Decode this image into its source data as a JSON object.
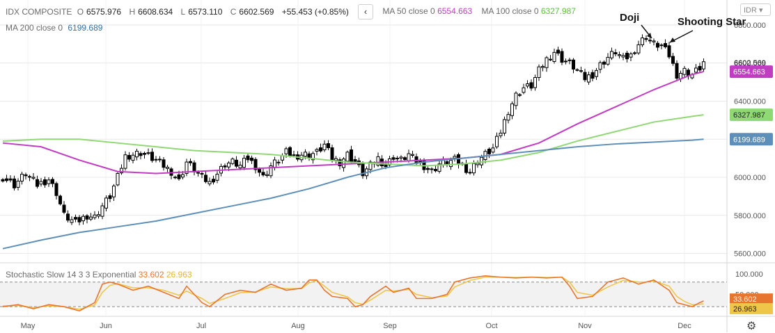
{
  "legend": {
    "symbol": "IDX COMPOSITE",
    "open_label": "O",
    "open": "6575.976",
    "high_label": "H",
    "high": "6608.634",
    "low_label": "L",
    "low": "6573.110",
    "close_label": "C",
    "close": "6602.569",
    "change": "+55.453 (+0.85%)",
    "ma50_label": "MA 50 close 0",
    "ma50": "6554.663",
    "ma100_label": "MA 100 close 0",
    "ma100": "6327.987",
    "ma200_label": "MA 200 close 0",
    "ma200": "6199.689",
    "collapse_icon": "‹",
    "currency": "IDR"
  },
  "stochastic": {
    "label": "Stochastic Slow 14 3 3 Exponential",
    "k": "33.602",
    "d": "26.963"
  },
  "colors": {
    "ma50": "#c23bc3",
    "ma100": "#8fd873",
    "ma200": "#5e8fb8",
    "k_line": "#e8752d",
    "d_line": "#f0c64a",
    "candle": "#000000",
    "grid": "#e8e8e8"
  },
  "annotations": [
    {
      "text": "Doji"
    },
    {
      "text": "Shooting Star"
    }
  ],
  "chart_data": {
    "type": "candlestick",
    "x_labels": [
      "May",
      "Jun",
      "Jul",
      "Aug",
      "Sep",
      "Oct",
      "Nov",
      "Dec"
    ],
    "price_axis": {
      "ticks": [
        "6800.000",
        "6600.000",
        "6400.000",
        "6200.000",
        "6000.000",
        "5800.000",
        "5600.000"
      ],
      "ylim": [
        5580,
        6880
      ]
    },
    "price_badges": [
      {
        "value": 6602.569,
        "label": "6602.569",
        "style": "plain"
      },
      {
        "value": 6554.663,
        "label": "6554.663",
        "color": "#c23bc3"
      },
      {
        "value": 6327.987,
        "label": "6327.987",
        "color": "#8fd873"
      },
      {
        "value": 6199.689,
        "label": "6199.689",
        "color": "#5e8fb8"
      }
    ],
    "stoch_axis": {
      "ticks": [
        "100.000",
        "50.000"
      ],
      "ylim": [
        0,
        110
      ],
      "bands": [
        80,
        20
      ]
    },
    "stoch_badges": [
      {
        "value": 33.602,
        "label": "33.602",
        "color": "#e8752d"
      },
      {
        "value": 26.963,
        "label": "26.963",
        "color": "#f0c64a"
      }
    ],
    "close_path": [
      [
        0,
        6000
      ],
      [
        3,
        5960
      ],
      [
        6,
        6020
      ],
      [
        9,
        5960
      ],
      [
        12,
        5990
      ],
      [
        14,
        5920
      ],
      [
        16,
        5800
      ],
      [
        19,
        5760
      ],
      [
        22,
        5800
      ],
      [
        24,
        5790
      ],
      [
        26,
        5850
      ],
      [
        28,
        5900
      ],
      [
        30,
        6000
      ],
      [
        32,
        6110
      ],
      [
        34,
        6120
      ],
      [
        36,
        6130
      ],
      [
        38,
        6110
      ],
      [
        40,
        6090
      ],
      [
        42,
        6060
      ],
      [
        44,
        6030
      ],
      [
        46,
        5980
      ],
      [
        48,
        6080
      ],
      [
        50,
        6040
      ],
      [
        52,
        6000
      ],
      [
        54,
        5970
      ],
      [
        56,
        6020
      ],
      [
        58,
        6070
      ],
      [
        60,
        6080
      ],
      [
        62,
        6060
      ],
      [
        64,
        6100
      ],
      [
        66,
        6060
      ],
      [
        68,
        6000
      ],
      [
        70,
        6060
      ],
      [
        72,
        6090
      ],
      [
        74,
        6130
      ],
      [
        76,
        6110
      ],
      [
        78,
        6120
      ],
      [
        80,
        6120
      ],
      [
        82,
        6130
      ],
      [
        84,
        6170
      ],
      [
        86,
        6100
      ],
      [
        88,
        6080
      ],
      [
        90,
        6120
      ],
      [
        92,
        6080
      ],
      [
        94,
        6020
      ],
      [
        96,
        6060
      ],
      [
        98,
        6100
      ],
      [
        100,
        6060
      ],
      [
        102,
        6110
      ],
      [
        104,
        6090
      ],
      [
        106,
        6120
      ],
      [
        108,
        6080
      ],
      [
        110,
        6060
      ],
      [
        112,
        6030
      ],
      [
        114,
        6070
      ],
      [
        116,
        6080
      ],
      [
        118,
        6090
      ],
      [
        120,
        6060
      ],
      [
        122,
        6030
      ],
      [
        124,
        6090
      ],
      [
        126,
        6120
      ],
      [
        128,
        6150
      ],
      [
        130,
        6240
      ],
      [
        132,
        6350
      ],
      [
        134,
        6430
      ],
      [
        136,
        6470
      ],
      [
        138,
        6480
      ],
      [
        140,
        6560
      ],
      [
        142,
        6620
      ],
      [
        144,
        6660
      ],
      [
        146,
        6620
      ],
      [
        148,
        6600
      ],
      [
        150,
        6560
      ],
      [
        152,
        6520
      ],
      [
        154,
        6540
      ],
      [
        156,
        6590
      ],
      [
        158,
        6630
      ],
      [
        160,
        6660
      ],
      [
        162,
        6620
      ],
      [
        164,
        6640
      ],
      [
        166,
        6700
      ],
      [
        168,
        6740
      ],
      [
        170,
        6700
      ],
      [
        172,
        6690
      ],
      [
        174,
        6640
      ],
      [
        176,
        6540
      ],
      [
        178,
        6560
      ],
      [
        180,
        6540
      ],
      [
        182,
        6575
      ],
      [
        183,
        6603
      ]
    ],
    "n_bars": 184,
    "series": [
      {
        "name": "MA 50",
        "points": [
          [
            0,
            6180
          ],
          [
            10,
            6160
          ],
          [
            20,
            6090
          ],
          [
            30,
            6030
          ],
          [
            40,
            6020
          ],
          [
            50,
            6030
          ],
          [
            60,
            6040
          ],
          [
            70,
            6050
          ],
          [
            80,
            6060
          ],
          [
            90,
            6070
          ],
          [
            100,
            6080
          ],
          [
            110,
            6090
          ],
          [
            120,
            6100
          ],
          [
            130,
            6120
          ],
          [
            140,
            6180
          ],
          [
            150,
            6280
          ],
          [
            160,
            6370
          ],
          [
            170,
            6460
          ],
          [
            180,
            6540
          ],
          [
            183,
            6555
          ]
        ]
      },
      {
        "name": "MA 100",
        "points": [
          [
            0,
            6190
          ],
          [
            10,
            6200
          ],
          [
            20,
            6200
          ],
          [
            30,
            6180
          ],
          [
            40,
            6160
          ],
          [
            50,
            6140
          ],
          [
            60,
            6130
          ],
          [
            70,
            6120
          ],
          [
            80,
            6100
          ],
          [
            90,
            6080
          ],
          [
            100,
            6070
          ],
          [
            110,
            6060
          ],
          [
            120,
            6070
          ],
          [
            130,
            6090
          ],
          [
            140,
            6130
          ],
          [
            150,
            6190
          ],
          [
            160,
            6240
          ],
          [
            170,
            6290
          ],
          [
            180,
            6320
          ],
          [
            183,
            6328
          ]
        ]
      },
      {
        "name": "MA 200",
        "points": [
          [
            0,
            5625
          ],
          [
            10,
            5670
          ],
          [
            20,
            5710
          ],
          [
            30,
            5740
          ],
          [
            40,
            5770
          ],
          [
            50,
            5810
          ],
          [
            60,
            5850
          ],
          [
            70,
            5890
          ],
          [
            80,
            5940
          ],
          [
            90,
            6000
          ],
          [
            100,
            6050
          ],
          [
            110,
            6080
          ],
          [
            120,
            6100
          ],
          [
            130,
            6120
          ],
          [
            140,
            6140
          ],
          [
            150,
            6160
          ],
          [
            160,
            6175
          ],
          [
            170,
            6185
          ],
          [
            180,
            6195
          ],
          [
            183,
            6200
          ]
        ]
      }
    ],
    "stoch_k": [
      [
        0,
        20
      ],
      [
        4,
        25
      ],
      [
        8,
        15
      ],
      [
        12,
        25
      ],
      [
        16,
        20
      ],
      [
        20,
        10
      ],
      [
        24,
        30
      ],
      [
        26,
        75
      ],
      [
        28,
        80
      ],
      [
        30,
        75
      ],
      [
        34,
        60
      ],
      [
        38,
        70
      ],
      [
        42,
        55
      ],
      [
        46,
        40
      ],
      [
        48,
        70
      ],
      [
        52,
        30
      ],
      [
        54,
        20
      ],
      [
        58,
        50
      ],
      [
        62,
        60
      ],
      [
        66,
        55
      ],
      [
        70,
        75
      ],
      [
        74,
        60
      ],
      [
        78,
        65
      ],
      [
        80,
        85
      ],
      [
        82,
        85
      ],
      [
        84,
        60
      ],
      [
        86,
        45
      ],
      [
        90,
        40
      ],
      [
        92,
        20
      ],
      [
        94,
        25
      ],
      [
        96,
        45
      ],
      [
        100,
        70
      ],
      [
        102,
        55
      ],
      [
        106,
        65
      ],
      [
        108,
        40
      ],
      [
        112,
        40
      ],
      [
        116,
        50
      ],
      [
        118,
        80
      ],
      [
        122,
        90
      ],
      [
        126,
        95
      ],
      [
        130,
        92
      ],
      [
        134,
        90
      ],
      [
        138,
        92
      ],
      [
        142,
        90
      ],
      [
        146,
        92
      ],
      [
        148,
        70
      ],
      [
        150,
        40
      ],
      [
        154,
        45
      ],
      [
        158,
        80
      ],
      [
        162,
        90
      ],
      [
        166,
        75
      ],
      [
        168,
        80
      ],
      [
        170,
        85
      ],
      [
        174,
        60
      ],
      [
        176,
        30
      ],
      [
        178,
        25
      ],
      [
        180,
        20
      ],
      [
        182,
        30
      ],
      [
        183,
        34
      ]
    ],
    "stoch_d": [
      [
        0,
        22
      ],
      [
        4,
        23
      ],
      [
        8,
        18
      ],
      [
        12,
        22
      ],
      [
        16,
        20
      ],
      [
        20,
        14
      ],
      [
        24,
        24
      ],
      [
        26,
        55
      ],
      [
        28,
        72
      ],
      [
        30,
        76
      ],
      [
        34,
        66
      ],
      [
        38,
        66
      ],
      [
        42,
        60
      ],
      [
        46,
        48
      ],
      [
        48,
        58
      ],
      [
        52,
        40
      ],
      [
        54,
        28
      ],
      [
        58,
        40
      ],
      [
        62,
        54
      ],
      [
        66,
        56
      ],
      [
        70,
        68
      ],
      [
        74,
        64
      ],
      [
        78,
        64
      ],
      [
        80,
        78
      ],
      [
        82,
        84
      ],
      [
        84,
        70
      ],
      [
        86,
        55
      ],
      [
        90,
        44
      ],
      [
        92,
        30
      ],
      [
        94,
        26
      ],
      [
        96,
        36
      ],
      [
        100,
        60
      ],
      [
        102,
        58
      ],
      [
        106,
        62
      ],
      [
        108,
        50
      ],
      [
        112,
        42
      ],
      [
        116,
        46
      ],
      [
        118,
        68
      ],
      [
        122,
        84
      ],
      [
        126,
        92
      ],
      [
        130,
        92
      ],
      [
        134,
        91
      ],
      [
        138,
        92
      ],
      [
        142,
        91
      ],
      [
        146,
        92
      ],
      [
        148,
        80
      ],
      [
        150,
        55
      ],
      [
        154,
        48
      ],
      [
        158,
        68
      ],
      [
        162,
        84
      ],
      [
        166,
        80
      ],
      [
        168,
        80
      ],
      [
        170,
        83
      ],
      [
        174,
        70
      ],
      [
        176,
        45
      ],
      [
        178,
        33
      ],
      [
        180,
        25
      ],
      [
        182,
        26
      ],
      [
        183,
        27
      ]
    ]
  }
}
